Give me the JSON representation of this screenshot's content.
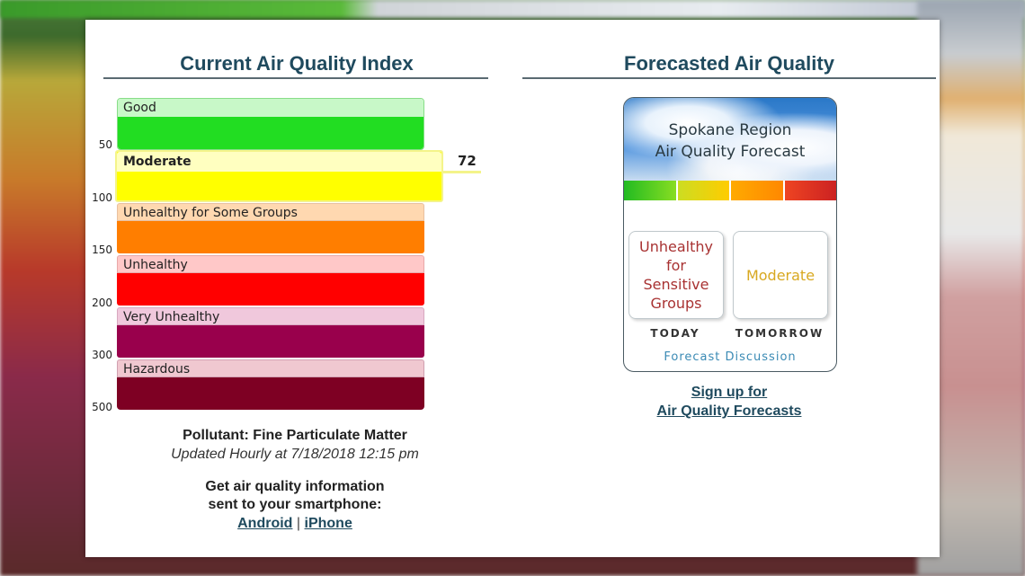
{
  "current": {
    "title": "Current Air Quality Index",
    "scale": [
      "50",
      "100",
      "150",
      "200",
      "300",
      "500"
    ],
    "bands": [
      {
        "label": "Good",
        "head_color": "#c8f8c8",
        "body_color": "#22dd22"
      },
      {
        "label": "Moderate",
        "head_color": "#ffffc0",
        "body_color": "#ffff00"
      },
      {
        "label": "Unhealthy for Some Groups",
        "head_color": "#ffd8b0",
        "body_color": "#ff7e00"
      },
      {
        "label": "Unhealthy",
        "head_color": "#ffc8c8",
        "body_color": "#ff0000"
      },
      {
        "label": "Very Unhealthy",
        "head_color": "#f0c8dc",
        "body_color": "#99004c"
      },
      {
        "label": "Hazardous",
        "head_color": "#f0c8d0",
        "body_color": "#7e0023"
      }
    ],
    "aqi_value": "72",
    "pollutant": "Pollutant: Fine Particulate Matter",
    "updated": "Updated Hourly at 7/18/2018 12:15 pm",
    "smartphone_line1": "Get air quality information",
    "smartphone_line2": "sent to your smartphone:",
    "android": "Android",
    "separator": "|",
    "iphone": "iPhone"
  },
  "forecast": {
    "title": "Forecasted Air Quality",
    "header_line1": "Spokane Region",
    "header_line2": "Air Quality Forecast",
    "today_status": "Unhealthy for Sensitive Groups",
    "today_label": "TODAY",
    "tomorrow_status": "Moderate",
    "tomorrow_label": "TOMORROW",
    "discussion": "Forecast Discussion",
    "signup_line1": "Sign up for",
    "signup_line2": "Air Quality Forecasts",
    "today_color": "#a83232",
    "tomorrow_color": "#d8a820"
  }
}
